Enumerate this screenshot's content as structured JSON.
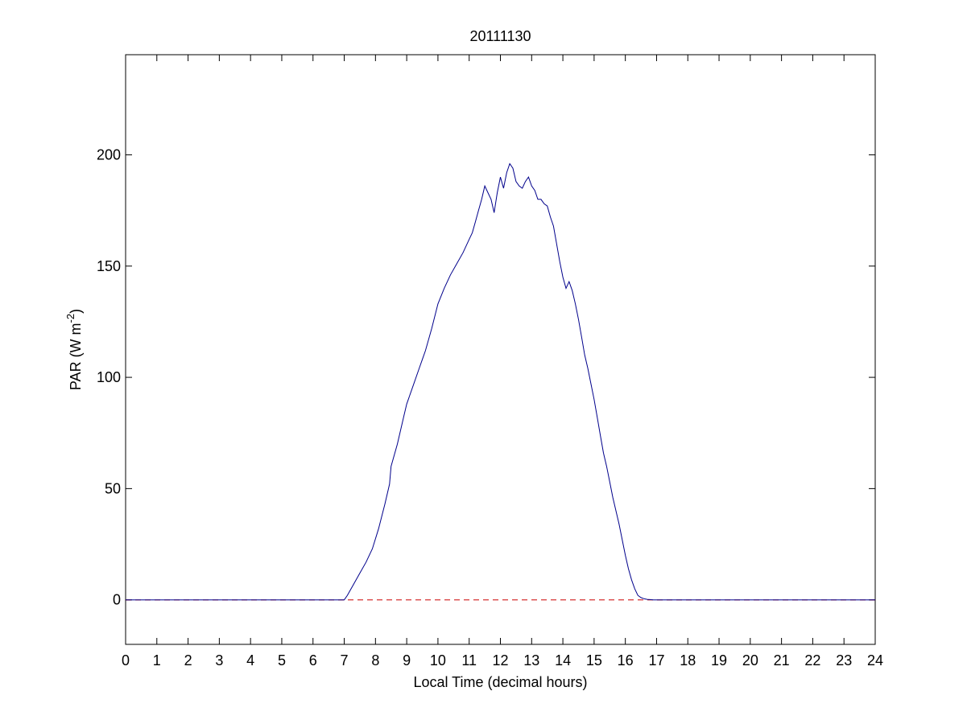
{
  "chart_data": {
    "type": "line",
    "title": "20111130",
    "xlabel": "Local Time (decimal hours)",
    "ylabel": "PAR (W m",
    "ylabel_sup": "-2",
    "ylabel_end": ")",
    "xlim": [
      0,
      24
    ],
    "ylim": [
      -20,
      245
    ],
    "xticks": [
      0,
      1,
      2,
      3,
      4,
      5,
      6,
      7,
      8,
      9,
      10,
      11,
      12,
      13,
      14,
      15,
      16,
      17,
      18,
      19,
      20,
      21,
      22,
      23,
      24
    ],
    "yticks": [
      0,
      50,
      100,
      150,
      200
    ],
    "grid": false,
    "series": [
      {
        "color": "#00008B",
        "style": "solid",
        "x": [
          0,
          7.0,
          7.1,
          7.3,
          7.5,
          7.7,
          7.9,
          8.1,
          8.3,
          8.45,
          8.5,
          8.7,
          8.9,
          9.0,
          9.2,
          9.4,
          9.5,
          9.6,
          9.8,
          10.0,
          10.2,
          10.4,
          10.6,
          10.8,
          11.0,
          11.1,
          11.2,
          11.3,
          11.4,
          11.5,
          11.6,
          11.7,
          11.8,
          11.9,
          12.0,
          12.1,
          12.2,
          12.3,
          12.4,
          12.5,
          12.6,
          12.7,
          12.8,
          12.9,
          13.0,
          13.1,
          13.2,
          13.3,
          13.4,
          13.5,
          13.6,
          13.7,
          13.8,
          13.9,
          14.0,
          14.1,
          14.2,
          14.3,
          14.4,
          14.5,
          14.6,
          14.7,
          14.8,
          14.9,
          15.0,
          15.1,
          15.2,
          15.3,
          15.4,
          15.5,
          15.6,
          15.7,
          15.8,
          15.9,
          16.0,
          16.1,
          16.2,
          16.3,
          16.4,
          16.5,
          16.6,
          16.7,
          16.8,
          16.9,
          17.0,
          17.1,
          17.2,
          24
        ],
        "y": [
          0,
          0,
          2,
          7,
          12,
          17,
          23,
          32,
          43,
          52,
          60,
          70,
          82,
          88,
          96,
          104,
          108,
          112,
          122,
          133,
          140,
          146,
          151,
          156,
          162,
          165,
          170,
          175,
          180,
          186,
          183,
          180,
          174,
          183,
          190,
          185,
          192,
          196,
          194,
          188,
          186,
          185,
          188,
          190,
          186,
          184,
          180,
          180,
          178,
          177,
          172,
          168,
          160,
          152,
          145,
          140,
          143,
          139,
          133,
          126,
          118,
          110,
          104,
          97,
          90,
          82,
          74,
          66,
          60,
          53,
          46,
          40,
          34,
          27,
          20,
          14,
          9,
          5,
          2,
          1,
          0.5,
          0.2,
          0.1,
          0,
          0,
          0,
          0,
          0
        ]
      },
      {
        "color": "#CC0000",
        "style": "dashed",
        "x": [
          0,
          24
        ],
        "y": [
          0,
          0
        ]
      }
    ]
  }
}
